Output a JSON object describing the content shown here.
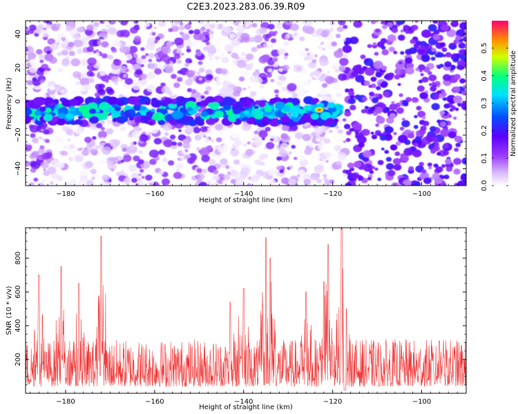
{
  "page": {
    "title": "C2E3.2023.283.06.39.R09"
  },
  "chart_data": [
    {
      "type": "heatmap",
      "xlabel": "Height of straight line (km)",
      "ylabel": "Frequency (Hz)",
      "xlim": [
        -189,
        -90
      ],
      "ylim": [
        -50,
        48
      ],
      "x_ticks": [
        -180,
        -160,
        -140,
        -120,
        -100
      ],
      "y_ticks": [
        40,
        20,
        0,
        -20,
        -40
      ],
      "colorbar": {
        "label": "Normalized spectral amplitude",
        "range": [
          0.0,
          0.6
        ],
        "ticks": [
          0.0,
          0.1,
          0.2,
          0.3,
          0.4,
          0.5
        ],
        "colormap": [
          "#ffffff",
          "#d9b8ff",
          "#9b3cff",
          "#5a00ff",
          "#0050ff",
          "#00e0ff",
          "#00ff80",
          "#d0ff00",
          "#ff9000",
          "#ff0070"
        ]
      },
      "features": {
        "signal_band_center_hz": -6,
        "signal_band_extent_km": [
          -189,
          -118
        ],
        "dense_region_km": [
          -117,
          -90
        ],
        "peak_amplitude": 0.55,
        "peak_location": {
          "x": -123,
          "y": -5
        }
      }
    },
    {
      "type": "line",
      "xlabel": "Height of straight line (km)",
      "ylabel": "SNR (10 * v/v)",
      "xlim": [
        -189,
        -90
      ],
      "ylim": [
        0,
        980
      ],
      "x_ticks": [
        -180,
        -160,
        -140,
        -120,
        -100
      ],
      "y_ticks": [
        200,
        400,
        600,
        800
      ],
      "series": [
        {
          "color": "#ee3333",
          "peaks": [
            {
              "x": -186,
              "y": 700
            },
            {
              "x": -181,
              "y": 750
            },
            {
              "x": -177,
              "y": 650
            },
            {
              "x": -172,
              "y": 930
            },
            {
              "x": -143,
              "y": 540
            },
            {
              "x": -140,
              "y": 620
            },
            {
              "x": -135,
              "y": 920
            },
            {
              "x": -134,
              "y": 800
            },
            {
              "x": -126,
              "y": 600
            },
            {
              "x": -122,
              "y": 660
            },
            {
              "x": -121,
              "y": 880
            },
            {
              "x": -118,
              "y": 980
            },
            {
              "x": -117,
              "y": 500
            },
            {
              "x": -96,
              "y": 310
            }
          ],
          "baseline_range": [
            40,
            320
          ]
        }
      ]
    }
  ]
}
